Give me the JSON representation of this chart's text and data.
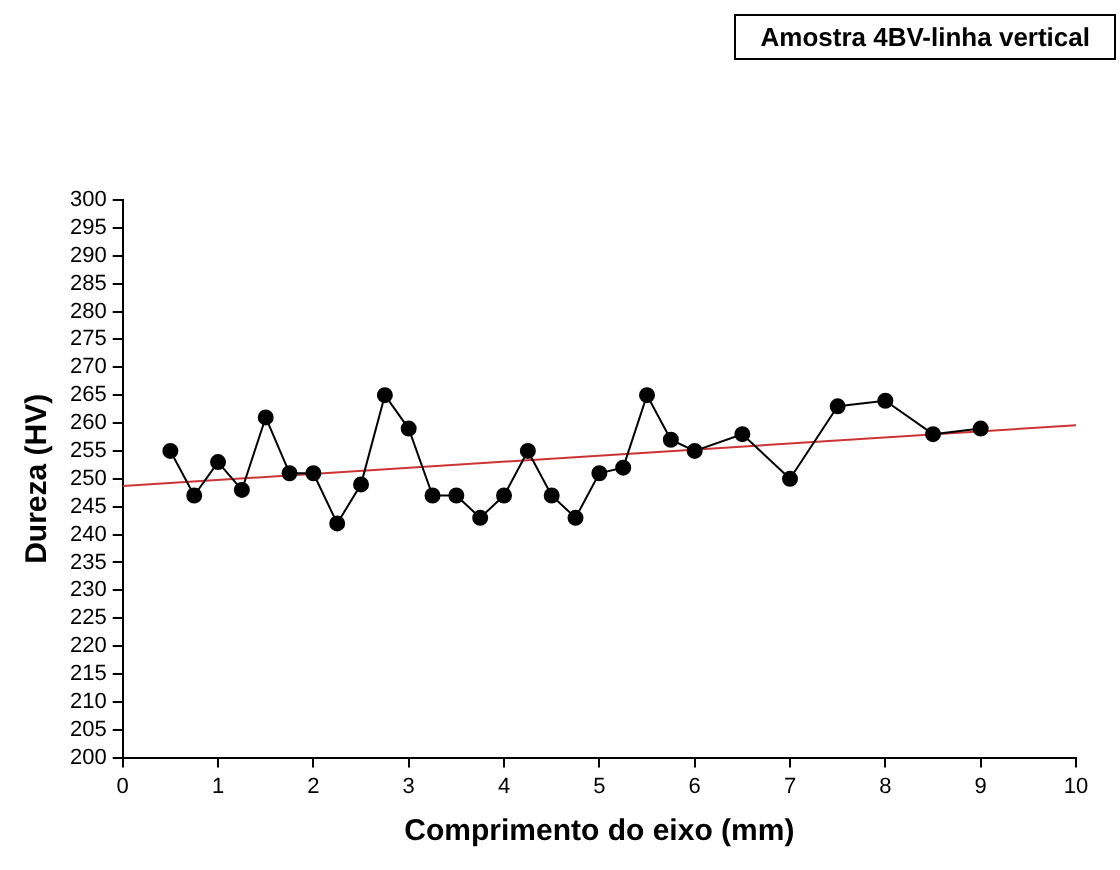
{
  "chart_data": {
    "type": "line",
    "title": "Amostra 4BV-linha vertical",
    "xlabel": "Comprimento do eixo (mm)",
    "ylabel": "Dureza (HV)",
    "xlim": [
      0,
      10
    ],
    "xticks": [
      0,
      1,
      2,
      3,
      4,
      5,
      6,
      7,
      8,
      9,
      10
    ],
    "ylim": [
      200,
      300
    ],
    "yticks": [
      200,
      205,
      210,
      215,
      220,
      225,
      230,
      235,
      240,
      245,
      250,
      255,
      260,
      265,
      270,
      275,
      280,
      285,
      290,
      295,
      300
    ],
    "grid": false,
    "legend": false,
    "marker": "circle",
    "line_style": "solid",
    "series": [
      {
        "type": "line",
        "color": "#000000",
        "x": [
          0.5,
          0.75,
          1,
          1.25,
          1.5,
          1.75,
          2,
          2.25,
          2.5,
          2.75,
          3,
          3.25,
          3.5,
          3.75,
          4,
          4.25,
          4.5,
          4.75,
          5,
          5.25,
          5.5,
          5.75,
          6,
          6.5,
          7,
          7.5,
          8,
          8.5,
          9
        ],
        "values": [
          255,
          247,
          253,
          248,
          261,
          251,
          251,
          242,
          249,
          265,
          259,
          247,
          247,
          243,
          247,
          255,
          247,
          243,
          251,
          252,
          265,
          257,
          255,
          258,
          250,
          263,
          264,
          258,
          259
        ]
      },
      {
        "type": "line",
        "color": "#cc3333",
        "marker": "none",
        "x": [
          0,
          10
        ],
        "values": [
          248.7,
          259.6
        ]
      }
    ]
  }
}
